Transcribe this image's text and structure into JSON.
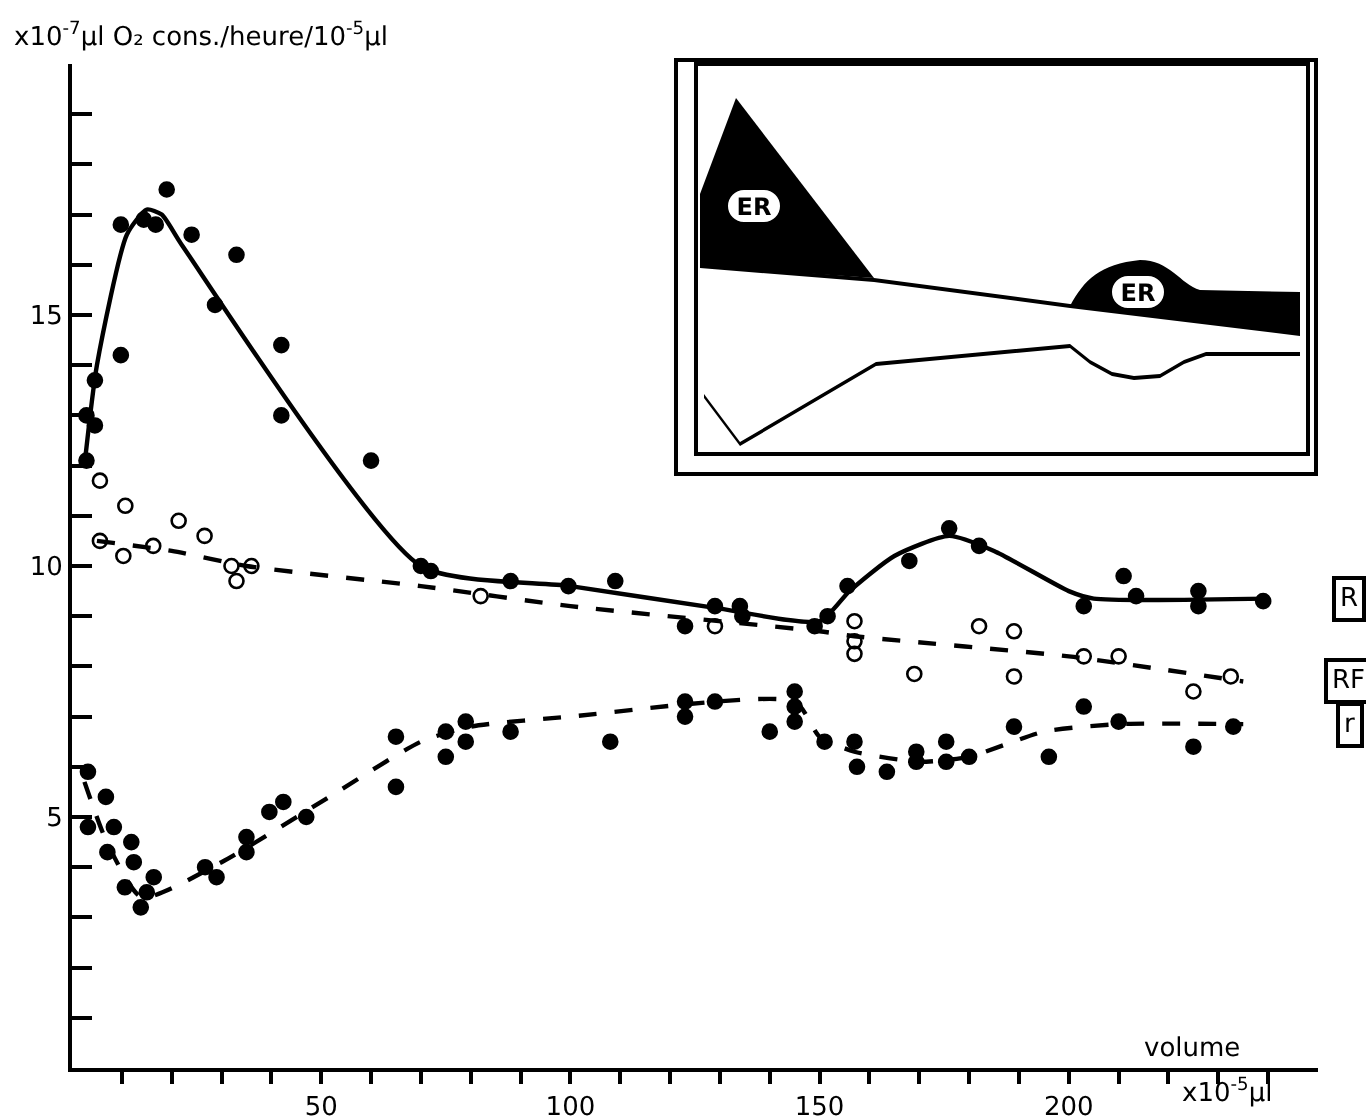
{
  "chart_data": {
    "type": "scatter",
    "ylabel": "x10$^{-7}$µl O₂ cons./heure/10$^{-5}$µl",
    "xlabel": "volume",
    "annotations": [
      "x10$^{-5}$µl",
      "ER",
      "ER"
    ],
    "xlim": [
      0,
      250
    ],
    "xticks": [
      {
        "value": 10,
        "label": null
      },
      {
        "value": 20,
        "label": null
      },
      {
        "value": 30,
        "label": null
      },
      {
        "value": 40,
        "label": null
      },
      50,
      {
        "value": 60,
        "label": null
      },
      {
        "value": 70,
        "label": null
      },
      {
        "value": 80,
        "label": null
      },
      {
        "value": 90,
        "label": null
      },
      100,
      {
        "value": 110,
        "label": null
      },
      {
        "value": 120,
        "label": null
      },
      {
        "value": 130,
        "label": null
      },
      {
        "value": 140,
        "label": null
      },
      150,
      {
        "value": 160,
        "label": null
      },
      {
        "value": 170,
        "label": null
      },
      {
        "value": 180,
        "label": null
      },
      {
        "value": 190,
        "label": null
      },
      200,
      {
        "value": 210,
        "label": null
      },
      {
        "value": 220,
        "label": null
      },
      {
        "value": 230,
        "label": null
      },
      {
        "value": 240,
        "label": null
      }
    ],
    "ylim": [
      0,
      20
    ],
    "yticks": [
      {
        "value": 1,
        "label": null
      },
      {
        "value": 2,
        "label": null
      },
      {
        "value": 3,
        "label": null
      },
      {
        "value": 4,
        "label": null
      },
      5,
      {
        "value": 6,
        "label": null
      },
      {
        "value": 7,
        "label": null
      },
      {
        "value": 8,
        "label": null
      },
      {
        "value": 9,
        "label": null
      },
      10,
      {
        "value": 11,
        "label": null
      },
      {
        "value": 12,
        "label": null
      },
      {
        "value": 13,
        "label": null
      },
      {
        "value": 14,
        "label": null
      },
      15,
      {
        "value": 16,
        "label": null
      },
      {
        "value": 17,
        "label": null
      },
      {
        "value": 18,
        "label": null
      },
      {
        "value": 19,
        "label": null
      }
    ],
    "series": [
      {
        "marker": "circle",
        "color": "#000000",
        "x": [
          2.9,
          2.9,
          4.6,
          4.6,
          9.8,
          9.8,
          14.4,
          16.8,
          19,
          24,
          28.7,
          33,
          42,
          42,
          60,
          70,
          72,
          88,
          99.6,
          109,
          123,
          129,
          134,
          134.5,
          149,
          151.6,
          155.6,
          168,
          176,
          182,
          211,
          203,
          213.5,
          226,
          226,
          239
        ],
        "values": [
          12.1,
          13.0,
          12.8,
          13.7,
          14.2,
          16.8,
          16.9,
          16.8,
          17.5,
          16.6,
          15.2,
          16.2,
          14.4,
          13.0,
          12.1,
          10.0,
          9.9,
          9.7,
          9.6,
          9.7,
          8.8,
          9.2,
          9.2,
          9.0,
          8.8,
          9.0,
          9.6,
          10.1,
          10.75,
          10.4,
          9.8,
          9.2,
          9.4,
          9.5,
          9.2,
          9.3
        ]
      },
      {
        "type": "line",
        "name": "R",
        "color": "#000000",
        "line_style": "solid",
        "x": [
          2.5,
          5,
          11,
          15,
          18,
          22,
          70,
          100,
          130,
          150,
          156,
          165,
          176,
          185,
          200,
          205,
          240
        ],
        "values": [
          12,
          14,
          16.6,
          17.1,
          17.0,
          16.4,
          10.0,
          9.6,
          9.15,
          8.9,
          9.5,
          10.2,
          10.6,
          10.3,
          9.5,
          9.35,
          9.35
        ]
      },
      {
        "marker": "circle-open",
        "color": "#000000",
        "x": [
          5.6,
          5.6,
          10.7,
          10.3,
          16.3,
          21.4,
          26.6,
          32,
          36,
          33,
          82,
          129,
          157,
          157,
          157,
          169,
          182,
          189,
          189,
          203,
          210,
          225,
          232.5
        ],
        "values": [
          11.7,
          10.5,
          11.2,
          10.2,
          10.4,
          10.9,
          10.6,
          10.0,
          10.0,
          9.7,
          9.4,
          8.8,
          8.9,
          8.5,
          8.25,
          7.85,
          8.8,
          8.7,
          7.8,
          8.2,
          8.2,
          7.5,
          7.8
        ]
      },
      {
        "type": "line",
        "name": "RF",
        "color": "#000000",
        "line_style": "dashed",
        "x": [
          5,
          20,
          35,
          70,
          100,
          150,
          157,
          200,
          235
        ],
        "values": [
          10.5,
          10.3,
          10.0,
          9.6,
          9.2,
          8.7,
          8.6,
          8.2,
          7.7
        ]
      },
      {
        "marker": "circle",
        "color": "#000000",
        "x": [
          3.2,
          3.2,
          6.8,
          8.4,
          7.1,
          11.9,
          12.4,
          10.6,
          13.8,
          15,
          16.4,
          26.7,
          29,
          35,
          35,
          39.6,
          42.4,
          47,
          65,
          65,
          75,
          75,
          79,
          79,
          88,
          108,
          123,
          123,
          129,
          140,
          145,
          145,
          145,
          151,
          157,
          157.5,
          163.5,
          169.4,
          169.4,
          175.4,
          175.4,
          180,
          189,
          196,
          203,
          210,
          225,
          233
        ],
        "values": [
          5.9,
          4.8,
          5.4,
          4.8,
          4.3,
          4.5,
          4.1,
          3.6,
          3.2,
          3.5,
          3.8,
          4.0,
          3.8,
          4.3,
          4.6,
          5.1,
          5.3,
          5.0,
          6.6,
          5.6,
          6.7,
          6.2,
          6.9,
          6.5,
          6.7,
          6.5,
          7.3,
          7.0,
          7.3,
          6.7,
          7.5,
          7.2,
          6.9,
          6.5,
          6.5,
          6.0,
          5.9,
          6.3,
          6.1,
          6.5,
          6.1,
          6.2,
          6.8,
          6.2,
          7.2,
          6.9,
          6.4,
          6.8
        ]
      },
      {
        "type": "line",
        "name": "r",
        "color": "#000000",
        "line_style": "dashed",
        "x": [
          2.5,
          7,
          14,
          30,
          50,
          70,
          80,
          100,
          145,
          150,
          157,
          170,
          180,
          195,
          210,
          235
        ],
        "values": [
          5.7,
          4.5,
          3.4,
          4.1,
          5.3,
          6.5,
          6.8,
          7.0,
          7.3,
          6.6,
          6.3,
          6.1,
          6.2,
          6.7,
          6.85,
          6.85
        ]
      }
    ]
  }
}
